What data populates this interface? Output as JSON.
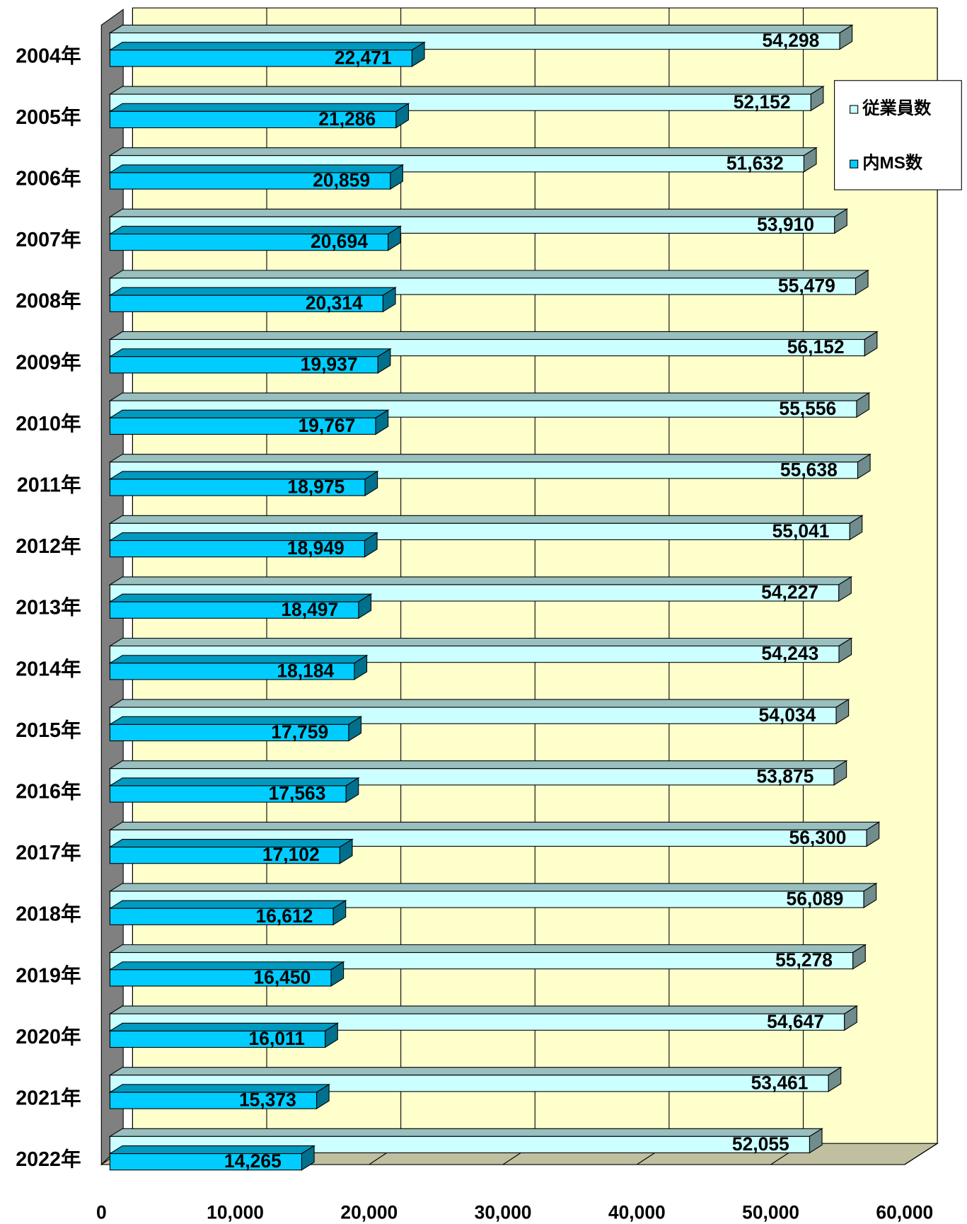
{
  "chart_data": {
    "type": "bar3d_horizontal",
    "categories": [
      "2004年",
      "2005年",
      "2006年",
      "2007年",
      "2008年",
      "2009年",
      "2010年",
      "2011年",
      "2012年",
      "2013年",
      "2014年",
      "2015年",
      "2016年",
      "2017年",
      "2018年",
      "2019年",
      "2020年",
      "2021年",
      "2022年"
    ],
    "series": [
      {
        "name": "従業員数",
        "color": "#ccffff",
        "values": [
          54298,
          52152,
          51632,
          53910,
          55479,
          56152,
          55556,
          55638,
          55041,
          54227,
          54243,
          54034,
          53875,
          56300,
          56089,
          55278,
          54647,
          53461,
          52055
        ],
        "value_labels": [
          "54,298",
          "52,152",
          "51,632",
          "53,910",
          "55,479",
          "56,152",
          "55,556",
          "55,638",
          "55,041",
          "54,227",
          "54,243",
          "54,034",
          "53,875",
          "56,300",
          "56,089",
          "55,278",
          "54,647",
          "53,461",
          "52,055"
        ]
      },
      {
        "name": "内MS数",
        "color": "#00ccff",
        "values": [
          22471,
          21286,
          20859,
          20694,
          20314,
          19937,
          19767,
          18975,
          18949,
          18497,
          18184,
          17759,
          17563,
          17102,
          16612,
          16450,
          16011,
          15373,
          14265
        ],
        "value_labels": [
          "22,471",
          "21,286",
          "20,859",
          "20,694",
          "20,314",
          "19,937",
          "19,767",
          "18,975",
          "18,949",
          "18,497",
          "18,184",
          "17,759",
          "17,563",
          "17,102",
          "16,612",
          "16,450",
          "16,011",
          "15,373",
          "14,265"
        ]
      }
    ],
    "xlim": [
      0,
      60000
    ],
    "xticks": [
      0,
      {
        "value": 10000,
        "label": "10,000"
      },
      {
        "value": 20000,
        "label": "20,000"
      },
      {
        "value": 30000,
        "label": "30,000"
      },
      {
        "value": 40000,
        "label": "40,000"
      },
      {
        "value": 50000,
        "label": "50,000"
      },
      {
        "value": 60000,
        "label": "60,000"
      }
    ],
    "grid": true,
    "legend": "upper right"
  }
}
